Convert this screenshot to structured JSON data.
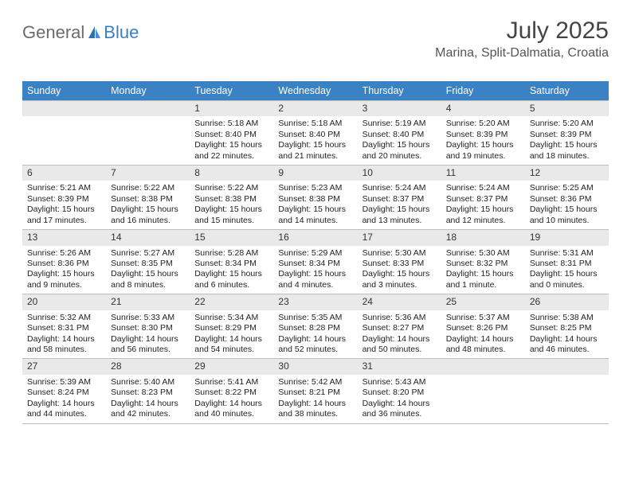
{
  "logo": {
    "text_general": "General",
    "text_blue": "Blue"
  },
  "title": "July 2025",
  "location": "Marina, Split-Dalmatia, Croatia",
  "colors": {
    "header_bg": "#3a82c4",
    "header_text": "#ffffff",
    "daynum_bg": "#e9e9e9",
    "rule": "#bdbdbd",
    "text": "#222222",
    "background": "#ffffff"
  },
  "days_of_week": [
    "Sunday",
    "Monday",
    "Tuesday",
    "Wednesday",
    "Thursday",
    "Friday",
    "Saturday"
  ],
  "weeks": [
    [
      null,
      null,
      {
        "n": "1",
        "sr": "5:18 AM",
        "ss": "8:40 PM",
        "dl": "15 hours and 22 minutes."
      },
      {
        "n": "2",
        "sr": "5:18 AM",
        "ss": "8:40 PM",
        "dl": "15 hours and 21 minutes."
      },
      {
        "n": "3",
        "sr": "5:19 AM",
        "ss": "8:40 PM",
        "dl": "15 hours and 20 minutes."
      },
      {
        "n": "4",
        "sr": "5:20 AM",
        "ss": "8:39 PM",
        "dl": "15 hours and 19 minutes."
      },
      {
        "n": "5",
        "sr": "5:20 AM",
        "ss": "8:39 PM",
        "dl": "15 hours and 18 minutes."
      }
    ],
    [
      {
        "n": "6",
        "sr": "5:21 AM",
        "ss": "8:39 PM",
        "dl": "15 hours and 17 minutes."
      },
      {
        "n": "7",
        "sr": "5:22 AM",
        "ss": "8:38 PM",
        "dl": "15 hours and 16 minutes."
      },
      {
        "n": "8",
        "sr": "5:22 AM",
        "ss": "8:38 PM",
        "dl": "15 hours and 15 minutes."
      },
      {
        "n": "9",
        "sr": "5:23 AM",
        "ss": "8:38 PM",
        "dl": "15 hours and 14 minutes."
      },
      {
        "n": "10",
        "sr": "5:24 AM",
        "ss": "8:37 PM",
        "dl": "15 hours and 13 minutes."
      },
      {
        "n": "11",
        "sr": "5:24 AM",
        "ss": "8:37 PM",
        "dl": "15 hours and 12 minutes."
      },
      {
        "n": "12",
        "sr": "5:25 AM",
        "ss": "8:36 PM",
        "dl": "15 hours and 10 minutes."
      }
    ],
    [
      {
        "n": "13",
        "sr": "5:26 AM",
        "ss": "8:36 PM",
        "dl": "15 hours and 9 minutes."
      },
      {
        "n": "14",
        "sr": "5:27 AM",
        "ss": "8:35 PM",
        "dl": "15 hours and 8 minutes."
      },
      {
        "n": "15",
        "sr": "5:28 AM",
        "ss": "8:34 PM",
        "dl": "15 hours and 6 minutes."
      },
      {
        "n": "16",
        "sr": "5:29 AM",
        "ss": "8:34 PM",
        "dl": "15 hours and 4 minutes."
      },
      {
        "n": "17",
        "sr": "5:30 AM",
        "ss": "8:33 PM",
        "dl": "15 hours and 3 minutes."
      },
      {
        "n": "18",
        "sr": "5:30 AM",
        "ss": "8:32 PM",
        "dl": "15 hours and 1 minute."
      },
      {
        "n": "19",
        "sr": "5:31 AM",
        "ss": "8:31 PM",
        "dl": "15 hours and 0 minutes."
      }
    ],
    [
      {
        "n": "20",
        "sr": "5:32 AM",
        "ss": "8:31 PM",
        "dl": "14 hours and 58 minutes."
      },
      {
        "n": "21",
        "sr": "5:33 AM",
        "ss": "8:30 PM",
        "dl": "14 hours and 56 minutes."
      },
      {
        "n": "22",
        "sr": "5:34 AM",
        "ss": "8:29 PM",
        "dl": "14 hours and 54 minutes."
      },
      {
        "n": "23",
        "sr": "5:35 AM",
        "ss": "8:28 PM",
        "dl": "14 hours and 52 minutes."
      },
      {
        "n": "24",
        "sr": "5:36 AM",
        "ss": "8:27 PM",
        "dl": "14 hours and 50 minutes."
      },
      {
        "n": "25",
        "sr": "5:37 AM",
        "ss": "8:26 PM",
        "dl": "14 hours and 48 minutes."
      },
      {
        "n": "26",
        "sr": "5:38 AM",
        "ss": "8:25 PM",
        "dl": "14 hours and 46 minutes."
      }
    ],
    [
      {
        "n": "27",
        "sr": "5:39 AM",
        "ss": "8:24 PM",
        "dl": "14 hours and 44 minutes."
      },
      {
        "n": "28",
        "sr": "5:40 AM",
        "ss": "8:23 PM",
        "dl": "14 hours and 42 minutes."
      },
      {
        "n": "29",
        "sr": "5:41 AM",
        "ss": "8:22 PM",
        "dl": "14 hours and 40 minutes."
      },
      {
        "n": "30",
        "sr": "5:42 AM",
        "ss": "8:21 PM",
        "dl": "14 hours and 38 minutes."
      },
      {
        "n": "31",
        "sr": "5:43 AM",
        "ss": "8:20 PM",
        "dl": "14 hours and 36 minutes."
      },
      null,
      null
    ]
  ],
  "labels": {
    "sunrise": "Sunrise: ",
    "sunset": "Sunset: ",
    "daylight": "Daylight: "
  }
}
